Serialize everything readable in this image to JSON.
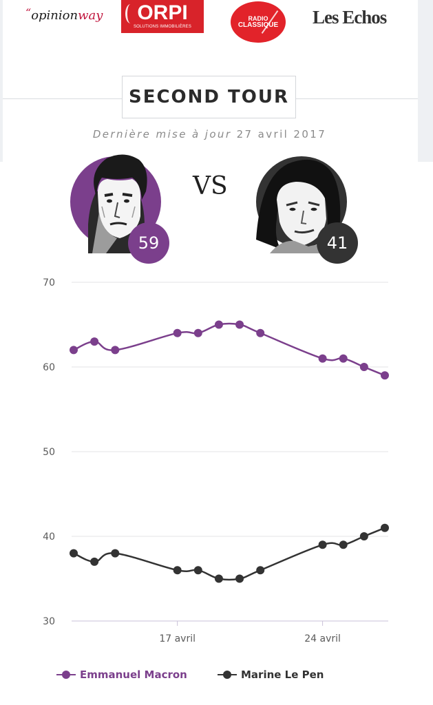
{
  "sponsors": {
    "opinionway_quote": "“",
    "opinionway_a": "opinion",
    "opinionway_b": "way",
    "orpi_name": "ORPI",
    "orpi_sub": "SOLUTIONS IMMOBILIÈRES",
    "radio_line1": "RADIO",
    "radio_line2": "CLASSIQUE",
    "lesechos": "Les Echos"
  },
  "header": {
    "title": "SECOND TOUR",
    "update_label": "Dernière mise à jour",
    "update_date": "27 avril 2017"
  },
  "versus": "VS",
  "candidates": [
    {
      "name": "Emmanuel Macron",
      "score": "59",
      "color": "#7b3f8c",
      "icon": "macron-portrait"
    },
    {
      "name": "Marine Le Pen",
      "score": "41",
      "color": "#333333",
      "icon": "le-pen-portrait"
    }
  ],
  "colors": {
    "macron": "#7b3f8c",
    "lepen": "#333333",
    "grid": "#e3e3e6",
    "axis_text": "#5a5a5a",
    "baseline": "#c8c0d8"
  },
  "chart_data": {
    "type": "line",
    "x_dates": [
      "2017-04-12",
      "2017-04-13",
      "2017-04-14",
      "2017-04-17",
      "2017-04-18",
      "2017-04-19",
      "2017-04-20",
      "2017-04-21",
      "2017-04-24",
      "2017-04-25",
      "2017-04-26",
      "2017-04-27"
    ],
    "xlim": [
      "2017-04-12",
      "2017-04-27"
    ],
    "x_ticks": [
      {
        "date": "2017-04-17",
        "label": "17 avril"
      },
      {
        "date": "2017-04-24",
        "label": "24 avril"
      }
    ],
    "ylim": [
      30,
      70
    ],
    "yticks": [
      30,
      40,
      50,
      60,
      70
    ],
    "grid": true,
    "legend_position": "bottom",
    "series": [
      {
        "name": "Emmanuel Macron",
        "color": "#7b3f8c",
        "values": [
          62,
          63,
          62,
          64,
          64,
          65,
          65,
          64,
          61,
          61,
          60,
          59
        ]
      },
      {
        "name": "Marine Le Pen",
        "color": "#333333",
        "values": [
          38,
          37,
          38,
          36,
          36,
          35,
          35,
          36,
          39,
          39,
          40,
          41
        ]
      }
    ],
    "title": "",
    "xlabel": "",
    "ylabel": ""
  }
}
